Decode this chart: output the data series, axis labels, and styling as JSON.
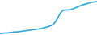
{
  "x": [
    0,
    1,
    2,
    3,
    4,
    5,
    6,
    7,
    8,
    9,
    10,
    11,
    12,
    13,
    14,
    15,
    16,
    17,
    18,
    19,
    20,
    21,
    22,
    23,
    24,
    25,
    26,
    27,
    28,
    29,
    30,
    31,
    32,
    33,
    34,
    35,
    36,
    37,
    38,
    39,
    40
  ],
  "y": [
    0.02,
    0.03,
    0.04,
    0.04,
    0.05,
    0.06,
    0.07,
    0.07,
    0.08,
    0.09,
    0.1,
    0.11,
    0.12,
    0.13,
    0.14,
    0.15,
    0.16,
    0.17,
    0.19,
    0.21,
    0.23,
    0.26,
    0.3,
    0.38,
    0.52,
    0.65,
    0.72,
    0.73,
    0.73,
    0.74,
    0.76,
    0.79,
    0.82,
    0.85,
    0.88,
    0.9,
    0.92,
    0.94,
    0.96,
    0.97,
    0.98
  ],
  "line_color": "#2fa8d5",
  "line_width": 1.2,
  "background_color": "#ffffff",
  "ylim": [
    -0.02,
    1.05
  ],
  "xlim": [
    0,
    40
  ]
}
